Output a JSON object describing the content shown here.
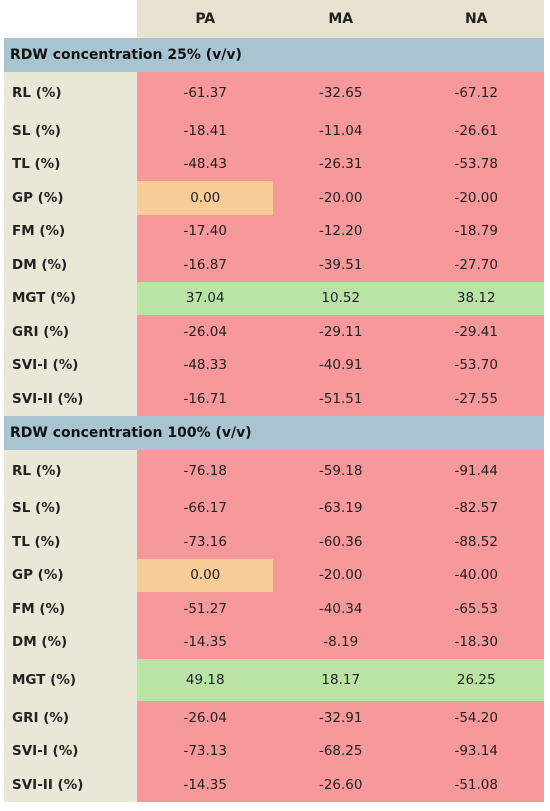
{
  "columns": [
    "PA",
    "MA",
    "NA"
  ],
  "colors": {
    "negative": "#f7989b",
    "positive": "#b9e4a6",
    "neutral": "#f8cc97",
    "section": "#a9c4d1",
    "label": "#e9e8d7"
  },
  "sections": [
    {
      "title": "RDW concentration 25% (v/v)",
      "rows": [
        {
          "label": "RL (%)",
          "values": [
            "-61.37",
            "-32.65",
            "-67.12"
          ]
        },
        {
          "label": "SL (%)",
          "values": [
            "-18.41",
            "-11.04",
            "-26.61"
          ]
        },
        {
          "label": "TL (%)",
          "values": [
            "-48.43",
            "-26.31",
            "-53.78"
          ]
        },
        {
          "label": "GP (%)",
          "values": [
            "0.00",
            "-20.00",
            "-20.00"
          ]
        },
        {
          "label": "FM (%)",
          "values": [
            "-17.40",
            "-12.20",
            "-18.79"
          ]
        },
        {
          "label": "DM (%)",
          "values": [
            "-16.87",
            "-39.51",
            "-27.70"
          ]
        },
        {
          "label": "MGT (%)",
          "values": [
            "37.04",
            "10.52",
            "38.12"
          ]
        },
        {
          "label": "GRI (%)",
          "values": [
            "-26.04",
            "-29.11",
            "-29.41"
          ]
        },
        {
          "label": "SVI-I (%)",
          "values": [
            "-48.33",
            "-40.91",
            "-53.70"
          ]
        },
        {
          "label": "SVI-II (%)",
          "values": [
            "-16.71",
            "-51.51",
            "-27.55"
          ]
        }
      ]
    },
    {
      "title": "RDW concentration 100% (v/v)",
      "rows": [
        {
          "label": "RL (%)",
          "values": [
            "-76.18",
            "-59.18",
            "-91.44"
          ]
        },
        {
          "label": "SL (%)",
          "values": [
            "-66.17",
            "-63.19",
            "-82.57"
          ]
        },
        {
          "label": "TL (%)",
          "values": [
            "-73.16",
            "-60.36",
            "-88.52"
          ]
        },
        {
          "label": "GP (%)",
          "values": [
            "0.00",
            "-20.00",
            "-40.00"
          ]
        },
        {
          "label": "FM (%)",
          "values": [
            "-51.27",
            "-40.34",
            "-65.53"
          ]
        },
        {
          "label": "DM (%)",
          "values": [
            "-14.35",
            "-8.19",
            "-18.30"
          ]
        },
        {
          "label": "MGT (%)",
          "values": [
            "49.18",
            "18.17",
            "26.25"
          ]
        },
        {
          "label": "GRI (%)",
          "values": [
            "-26.04",
            "-32.91",
            "-54.20"
          ]
        },
        {
          "label": "SVI-I (%)",
          "values": [
            "-73.13",
            "-68.25",
            "-93.14"
          ]
        },
        {
          "label": "SVI-II (%)",
          "values": [
            "-14.35",
            "-26.60",
            "-51.08"
          ]
        }
      ]
    }
  ]
}
